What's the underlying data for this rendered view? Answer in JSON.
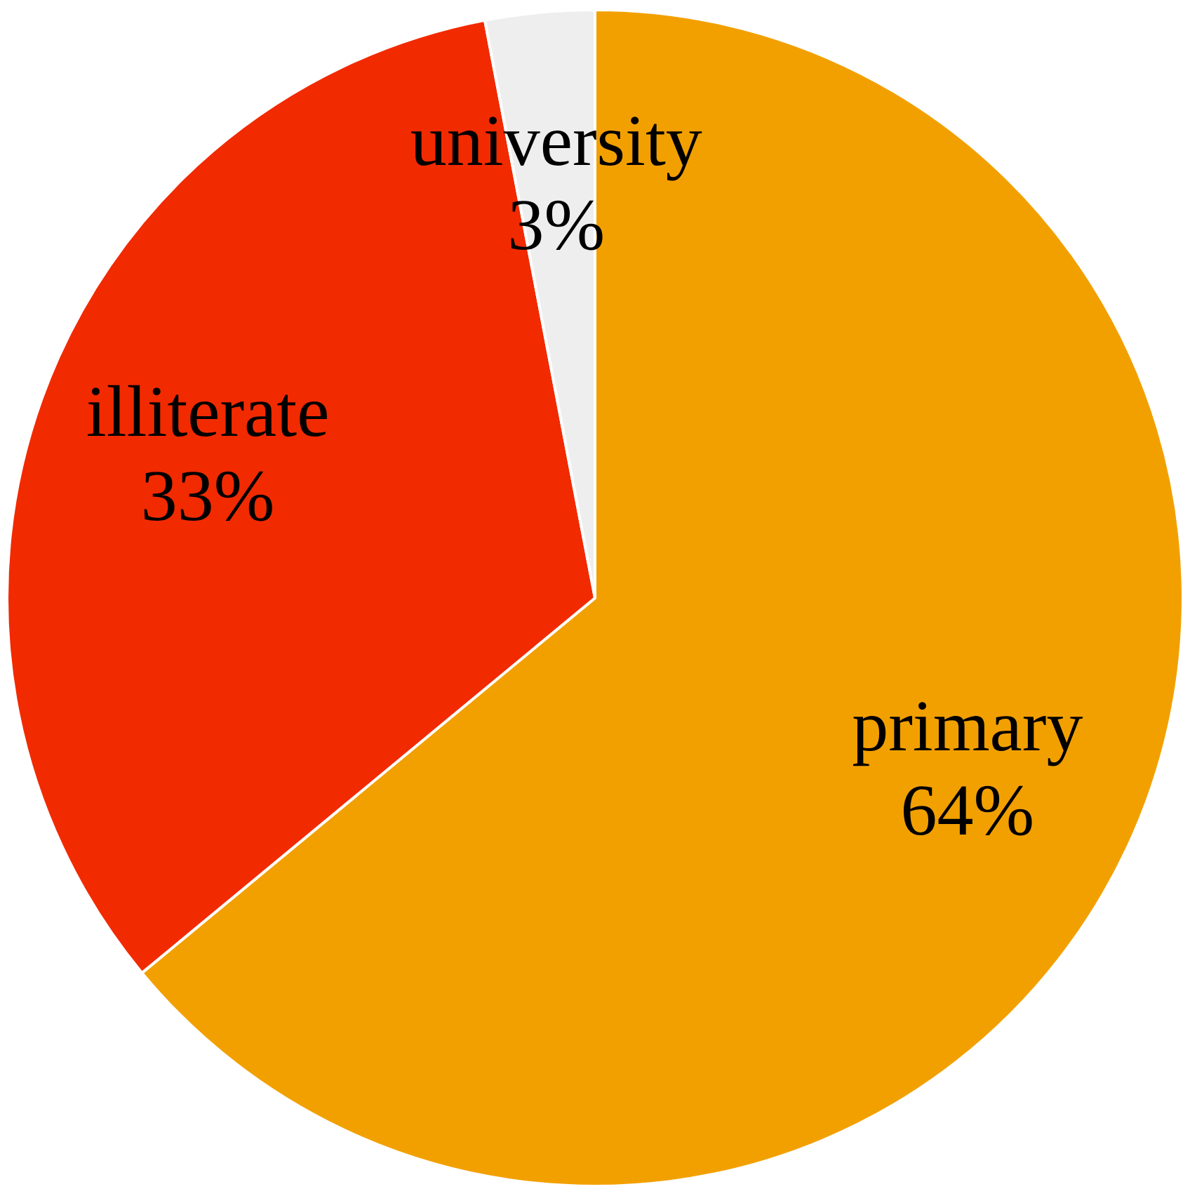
{
  "chart_data": {
    "type": "pie",
    "categories": [
      "primary",
      "illiterate",
      "university"
    ],
    "values": [
      64,
      33,
      3
    ],
    "colors": [
      "#f2a000",
      "#f22a00",
      "#eeeeee"
    ],
    "value_labels": [
      "64%",
      "33%",
      "3%"
    ],
    "legend": false
  }
}
